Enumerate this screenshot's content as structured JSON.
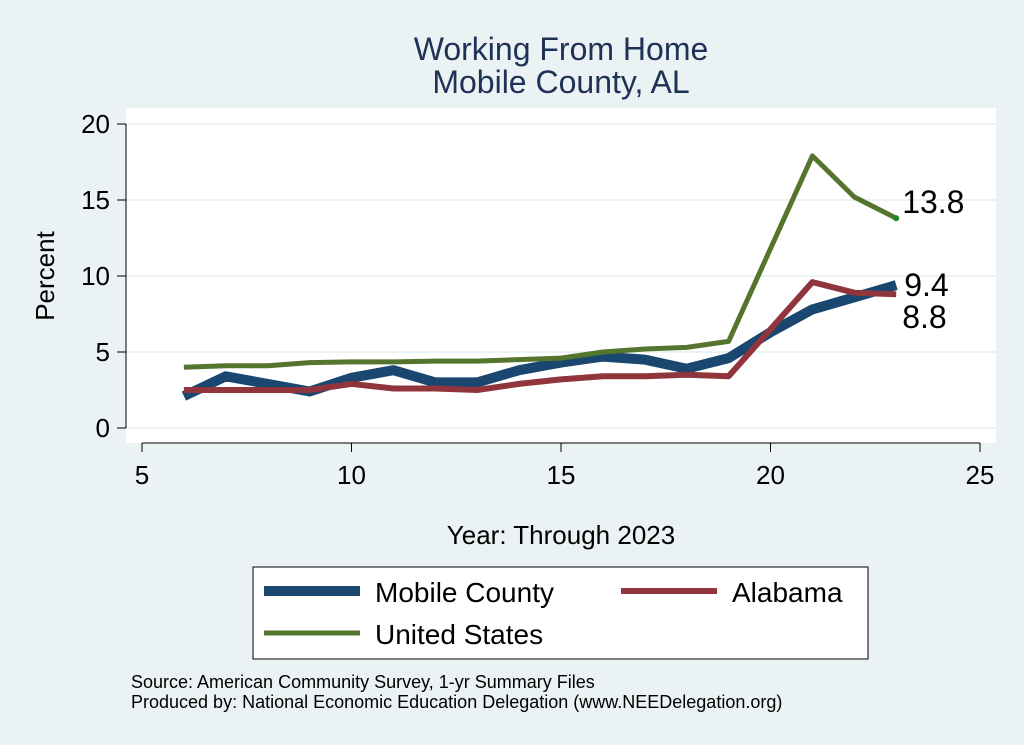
{
  "chart_data": {
    "type": "line",
    "title": [
      "Working From Home",
      "Mobile County, AL"
    ],
    "xlabel": "Year: Through 2023",
    "ylabel": "Percent",
    "xlim": [
      5,
      25
    ],
    "ylim": [
      0,
      20
    ],
    "xticks": [
      5,
      10,
      15,
      20,
      25
    ],
    "yticks": [
      0,
      5,
      10,
      15,
      20
    ],
    "grid": true,
    "legend_position": "bottom",
    "series": [
      {
        "name": "Mobile County",
        "color": "#1a476f",
        "x": [
          6,
          7,
          8,
          9,
          10,
          11,
          12,
          13,
          14,
          15,
          16,
          17,
          18,
          19,
          20,
          21,
          22,
          23
        ],
        "y": [
          2.1,
          3.4,
          2.9,
          2.4,
          3.3,
          3.8,
          3.0,
          3.0,
          3.8,
          4.3,
          4.7,
          4.5,
          3.9,
          4.6,
          6.3,
          7.8,
          8.6,
          9.4
        ],
        "end_label": "9.4"
      },
      {
        "name": "Alabama",
        "color": "#90353b",
        "x": [
          6,
          7,
          8,
          9,
          10,
          11,
          12,
          13,
          14,
          15,
          16,
          17,
          18,
          19,
          20,
          21,
          22,
          23
        ],
        "y": [
          2.5,
          2.5,
          2.5,
          2.5,
          2.9,
          2.6,
          2.6,
          2.5,
          2.9,
          3.2,
          3.4,
          3.4,
          3.5,
          3.4,
          6.5,
          9.6,
          8.9,
          8.8
        ],
        "end_label": "8.8"
      },
      {
        "name": "United States",
        "color": "#55752f",
        "x": [
          6,
          7,
          8,
          9,
          10,
          11,
          12,
          13,
          14,
          15,
          16,
          17,
          18,
          19,
          20,
          21,
          22,
          23
        ],
        "y": [
          4.0,
          4.1,
          4.1,
          4.3,
          4.35,
          4.35,
          4.4,
          4.4,
          4.5,
          4.6,
          5.0,
          5.2,
          5.3,
          5.7,
          11.8,
          17.9,
          15.2,
          13.8
        ],
        "end_label": "13.8"
      }
    ],
    "notes": [
      "Source: American Community Survey, 1-yr Summary Files",
      "Produced by: National Economic Education Delegation (www.NEEDelegation.org)"
    ]
  }
}
